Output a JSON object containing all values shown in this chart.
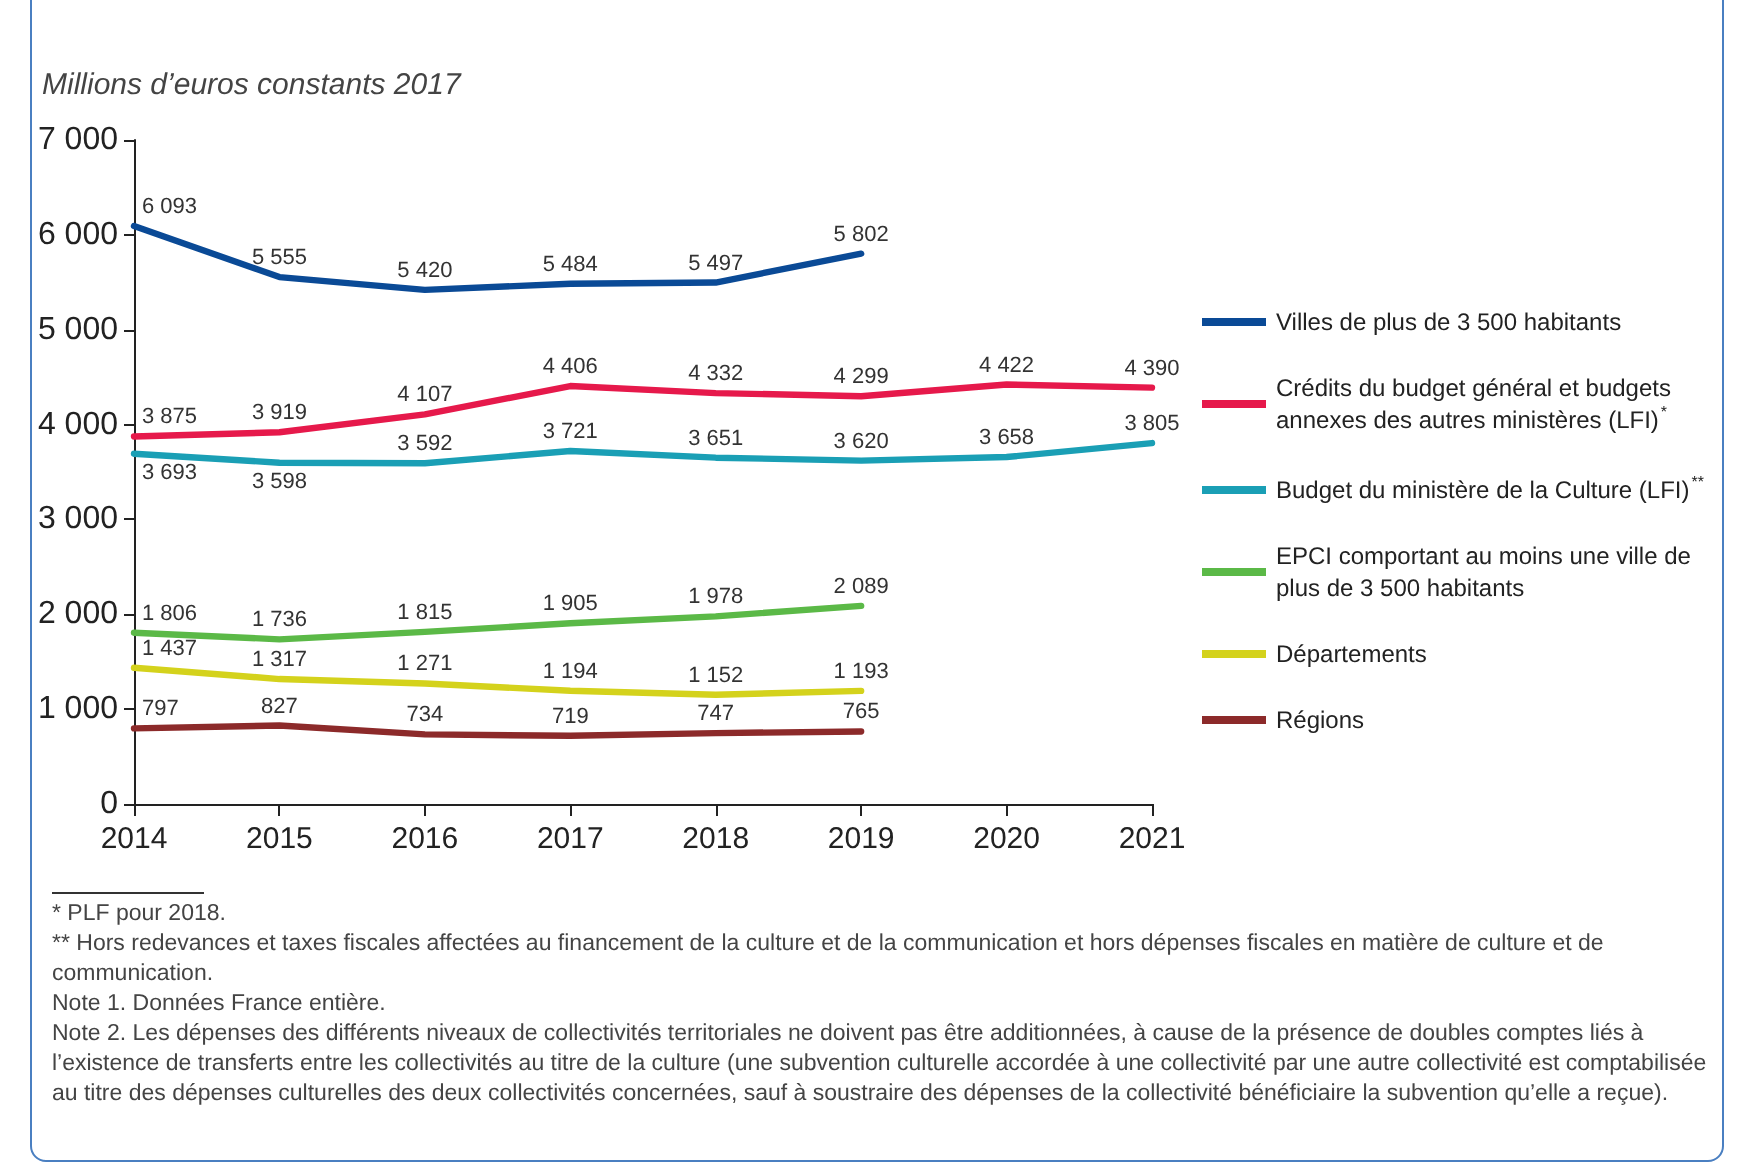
{
  "chart_data": {
    "type": "line",
    "ylabel": "Millions d’euros constants 2017",
    "categories": [
      "2014",
      "2015",
      "2016",
      "2017",
      "2018",
      "2019",
      "2020",
      "2021"
    ],
    "ylim": [
      0,
      7000
    ],
    "yticks": [
      0,
      {
        "value": 1000,
        "label": "1 000"
      },
      {
        "value": 2000,
        "label": "2 000"
      },
      {
        "value": 3000,
        "label": "3 000"
      },
      {
        "value": 4000,
        "label": "4 000"
      },
      {
        "value": 5000,
        "label": "5 000"
      },
      {
        "value": 6000,
        "label": "6 000"
      },
      {
        "value": 7000,
        "label": "7 000"
      }
    ],
    "grid": false,
    "legend": "right",
    "marker": "none",
    "line_style": "solid",
    "series": [
      {
        "name": "Villes de plus de 3 500 habitants",
        "color": "#0a4a96",
        "values": [
          6093,
          5555,
          5420,
          5484,
          5497,
          5802,
          null,
          null
        ],
        "value_labels": [
          "6 093",
          "5 555",
          "5 420",
          "5 484",
          "5 497",
          "5 802",
          null,
          null
        ]
      },
      {
        "name": "Crédits du budget général et budgets annexes des autres ministères (LFI)$^{*}$",
        "color": "#e6194b",
        "values": [
          3875,
          3919,
          4107,
          4406,
          4332,
          4299,
          4422,
          4390
        ],
        "value_labels": [
          "3 875",
          "3 919",
          "4 107",
          "4 406",
          "4 332",
          "4 299",
          "4 422",
          "4 390"
        ]
      },
      {
        "name": "Budget du ministère de la Culture (LFI)$^{**}$",
        "color": "#1a9fb5",
        "values": [
          3693,
          3598,
          3592,
          3721,
          3651,
          3620,
          3658,
          3805
        ],
        "value_labels": [
          "3 693",
          "3 598",
          "3 592",
          "3 721",
          "3 651",
          "3 620",
          "3 658",
          "3 805"
        ]
      },
      {
        "name": "EPCI comportant au moins une ville de plus de 3 500 habitants",
        "color": "#5bb947",
        "values": [
          1806,
          1736,
          1815,
          1905,
          1978,
          2089,
          null,
          null
        ],
        "value_labels": [
          "1 806",
          "1 736",
          "1 815",
          "1 905",
          "1 978",
          "2 089",
          null,
          null
        ]
      },
      {
        "name": "Départements",
        "color": "#d4d21c",
        "values": [
          1437,
          1317,
          1271,
          1194,
          1152,
          1193,
          null,
          null
        ],
        "value_labels": [
          "1 437",
          "1 317",
          "1 271",
          "1 194",
          "1 152",
          "1 193",
          null,
          null
        ]
      },
      {
        "name": "Régions",
        "color": "#8c2a2a",
        "values": [
          797,
          827,
          734,
          719,
          747,
          765,
          null,
          null
        ],
        "value_labels": [
          "797",
          "827",
          "734",
          "719",
          "747",
          "765",
          null,
          null
        ]
      }
    ],
    "annotations": [
      "* PLF pour 2018.",
      "** Hors redevances et taxes fiscales affectées au financement de la culture et de la communication et hors dépenses fiscales en matière de culture et de communication.",
      "Note 1. Données France entière.",
      "Note 2. Les dépenses des différents niveaux de collectivités territoriales ne doivent pas être additionnées, à cause de la présence de doubles comptes liés à l’existence de transferts entre les collectivités au titre de la culture (une subvention culturelle accordée à une collectivité par une autre collectivité est comptabilisée au titre des dépenses culturelles des deux collectivités concernées, sauf à soustraire des dépenses de la collectivité bénéficiaire la subvention qu’elle a reçue)."
    ]
  }
}
